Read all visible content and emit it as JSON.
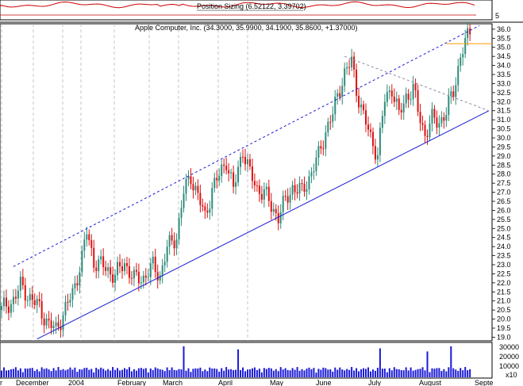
{
  "colors": {
    "up": "#2e8b7a",
    "down": "#dd1111",
    "line_blue": "#1a1ad6",
    "dotted_gray": "#8a8aa0",
    "volume": "#1a1ad6",
    "indicator": "#cc0000",
    "gridline": "#b0b0b0",
    "resistance_orange": "#ff9900"
  },
  "top_panel": {
    "label": "Position Sizing (6.52122, 3.39702)",
    "axis_label": "5"
  },
  "price_panel": {
    "label": "Apple Computer, Inc. (34.3000, 35.9900, 34.1900, 35.8600, +1.37000)"
  },
  "x_labels": [
    "r",
    "December",
    "2004",
    "February",
    "March",
    "April",
    "May",
    "June",
    "July",
    "August",
    "Septe"
  ],
  "volume_ticks": [
    "30000",
    "20000",
    "10000",
    "x10"
  ],
  "chart_data": {
    "type": "candlestick",
    "title": "Apple Computer, Inc. (34.3000, 35.9900, 34.1900, 35.8600, +1.37000)",
    "ylim": [
      18.8,
      36.3
    ],
    "yticks": [
      19.0,
      19.5,
      20.0,
      20.5,
      21.0,
      21.5,
      22.0,
      22.5,
      23.0,
      23.5,
      24.0,
      24.5,
      25.0,
      25.5,
      26.0,
      26.5,
      27.0,
      27.5,
      28.0,
      28.5,
      29.0,
      29.5,
      30.0,
      30.5,
      31.0,
      31.5,
      32.0,
      32.5,
      33.0,
      33.5,
      34.0,
      34.5,
      35.0,
      35.5,
      36.0
    ],
    "grid": true,
    "price_path": [
      [
        0,
        20.5
      ],
      [
        4,
        20.9
      ],
      [
        8,
        21.8
      ],
      [
        12,
        21.2
      ],
      [
        16,
        20.6
      ],
      [
        20,
        19.7
      ],
      [
        23,
        19.4
      ],
      [
        26,
        20.3
      ],
      [
        30,
        21.4
      ],
      [
        34,
        23.4
      ],
      [
        36,
        24.8
      ],
      [
        39,
        23.2
      ],
      [
        43,
        22.9
      ],
      [
        48,
        22.4
      ],
      [
        52,
        23.1
      ],
      [
        56,
        22.2
      ],
      [
        60,
        22.3
      ],
      [
        64,
        22.9
      ],
      [
        67,
        22.4
      ],
      [
        70,
        23.9
      ],
      [
        74,
        24.6
      ],
      [
        77,
        27.0
      ],
      [
        80,
        27.9
      ],
      [
        83,
        26.8
      ],
      [
        86,
        25.6
      ],
      [
        89,
        27.2
      ],
      [
        92,
        27.9
      ],
      [
        95,
        28.8
      ],
      [
        98,
        27.1
      ],
      [
        102,
        29.4
      ],
      [
        105,
        28.0
      ],
      [
        108,
        27.2
      ],
      [
        111,
        27.0
      ],
      [
        114,
        26.2
      ],
      [
        117,
        25.7
      ],
      [
        120,
        26.5
      ],
      [
        123,
        27.3
      ],
      [
        127,
        27.0
      ],
      [
        131,
        28.1
      ],
      [
        134,
        29.0
      ],
      [
        137,
        30.4
      ],
      [
        140,
        31.3
      ],
      [
        143,
        32.8
      ],
      [
        145,
        33.6
      ],
      [
        148,
        34.2
      ],
      [
        150,
        32.7
      ],
      [
        153,
        31.2
      ],
      [
        156,
        30.0
      ],
      [
        159,
        29.1
      ],
      [
        162,
        32.1
      ],
      [
        165,
        32.8
      ],
      [
        168,
        31.2
      ],
      [
        171,
        32.3
      ],
      [
        174,
        32.7
      ],
      [
        176,
        31.5
      ],
      [
        179,
        30.2
      ],
      [
        182,
        31.0
      ],
      [
        185,
        30.9
      ],
      [
        188,
        31.4
      ],
      [
        191,
        32.6
      ],
      [
        194,
        34.5
      ],
      [
        196,
        35.2
      ],
      [
        198,
        35.9
      ]
    ],
    "volume_spikes": [
      [
        77,
        30000
      ],
      [
        100,
        27000
      ],
      [
        160,
        28000
      ],
      [
        180,
        25000
      ],
      [
        190,
        30000
      ]
    ],
    "trend_lines": [
      {
        "style": "solid",
        "from": [
          15,
          18.9
        ],
        "to": [
          206,
          31.5
        ]
      },
      {
        "style": "dashed",
        "from": [
          5,
          22.9
        ],
        "to": [
          202,
          36.2
        ]
      },
      {
        "style": "dotted",
        "from": [
          145,
          34.5
        ],
        "to": [
          206,
          31.5
        ]
      }
    ],
    "resistance_level": 35.2
  }
}
